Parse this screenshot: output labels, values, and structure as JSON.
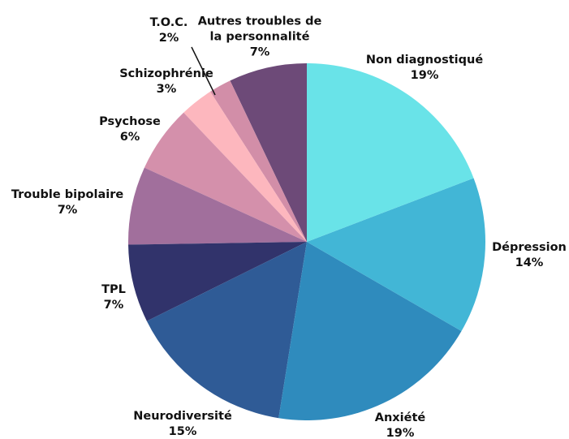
{
  "chart_data": {
    "type": "pie",
    "categories": [
      "Non diagnostiqué",
      "Dépression",
      "Anxiété",
      "Neurodiversité",
      "TPL",
      "Trouble bipolaire",
      "Psychose",
      "Schizophrénie",
      "T.O.C.",
      "Autres troubles de la personnalité"
    ],
    "values": [
      19,
      14,
      19,
      15,
      7,
      7,
      6,
      3,
      2,
      7
    ],
    "value_labels": [
      "19%",
      "14%",
      "19%",
      "15%",
      "7%",
      "7%",
      "6%",
      "3%",
      "2%",
      "7%"
    ],
    "colors": [
      "#69e3e8",
      "#42b6d6",
      "#2f8bbd",
      "#2f5b96",
      "#31336b",
      "#a16f9c",
      "#d490ab",
      "#fdb7be",
      "#d28ea8",
      "#6d4a78"
    ]
  }
}
